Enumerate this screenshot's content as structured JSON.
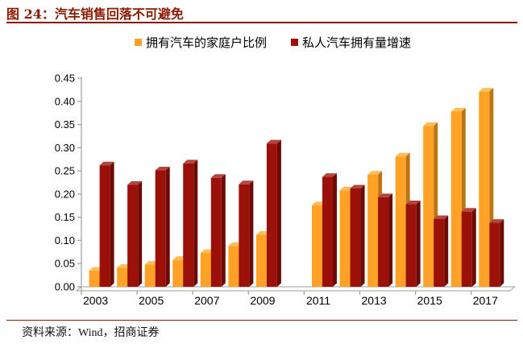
{
  "header": {
    "title": "图 24：汽车销售回落不可避免",
    "rule_color": "#8B1A00"
  },
  "legend": {
    "items": [
      {
        "label": "拥有汽车的家庭户比例",
        "color": "#FFA226"
      },
      {
        "label": "私人汽车拥有量增速",
        "color": "#9B110A"
      }
    ]
  },
  "footer": {
    "source": "资料来源：Wind，招商证券"
  },
  "chart_data": {
    "type": "bar",
    "title": "",
    "xlabel": "",
    "ylabel": "",
    "categories": [
      "2003",
      "2004",
      "2005",
      "2006",
      "2007",
      "2008",
      "2009",
      "2010",
      "2011",
      "2012",
      "2013",
      "2014",
      "2015",
      "2016",
      "2017"
    ],
    "series": [
      {
        "name": "拥有汽车的家庭户比例",
        "color": "#FFA226",
        "side_color": "#BD7512",
        "top_color": "#FDBE57",
        "values": [
          0.035,
          0.041,
          0.048,
          0.058,
          0.073,
          0.088,
          0.112,
          null,
          0.176,
          0.208,
          0.242,
          0.281,
          0.347,
          0.378,
          0.421
        ]
      },
      {
        "name": "私人汽车拥有量增速",
        "color": "#9B110A",
        "side_color": "#6B0A06",
        "top_color": "#B2463F",
        "values": [
          0.262,
          0.22,
          0.251,
          0.266,
          0.235,
          0.221,
          0.309,
          null,
          0.237,
          0.212,
          0.193,
          0.178,
          0.146,
          0.162,
          0.138
        ]
      }
    ],
    "ylim": [
      0,
      0.45
    ],
    "ytick_step": 0.05,
    "ytick_labels": [
      "0.00",
      "0.05",
      "0.10",
      "0.15",
      "0.20",
      "0.25",
      "0.30",
      "0.35",
      "0.40",
      "0.45"
    ],
    "xtick_labels": [
      "2003",
      "2005",
      "2007",
      "2009",
      "2011",
      "2013",
      "2015",
      "2017"
    ],
    "grid": false,
    "legend_position": "top",
    "axis_color": "#9c9c9c",
    "style": "3d-column",
    "note": "no bars plotted for 2010"
  }
}
